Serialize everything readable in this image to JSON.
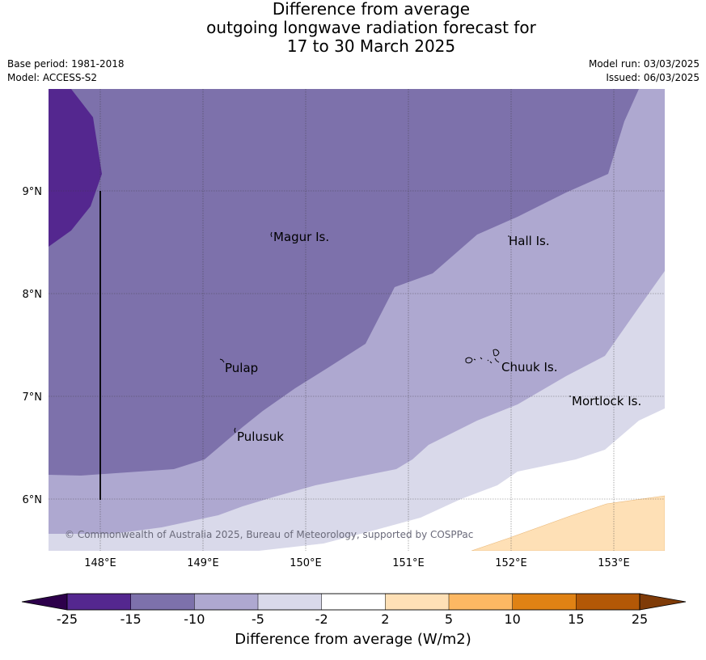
{
  "title": {
    "line1": "Difference from average",
    "line2": "outgoing longwave radiation forecast for",
    "line3": "17 to 30 March 2025"
  },
  "meta": {
    "base_period": "Base period: 1981-2018",
    "model": "Model: ACCESS-S2",
    "model_run": "Model run: 03/03/2025",
    "issued": "Issued: 06/03/2025"
  },
  "map": {
    "lon_ticks": [
      "148°E",
      "149°E",
      "150°E",
      "151°E",
      "152°E",
      "153°E"
    ],
    "lat_ticks": [
      "9°N",
      "8°N",
      "7°N",
      "6°N"
    ],
    "places": [
      "Magur Is.",
      "Hall Is.",
      "Pulap",
      "Chuuk Is.",
      "Mortlock Is.",
      "Pulusuk"
    ],
    "copyright": "© Commonwealth of Australia 2025, Bureau of Meteorology, supported by COSPPac"
  },
  "colorbar": {
    "labels": [
      "-25",
      "-15",
      "-10",
      "-5",
      "-2",
      "2",
      "5",
      "10",
      "15",
      "25"
    ],
    "colors": [
      "#54278f",
      "#7d71ab",
      "#aea8d0",
      "#d9d9ea",
      "#ffffff",
      "#fee0b6",
      "#fdb863",
      "#e08214",
      "#b35806",
      "#2d004b",
      "#7f3b08"
    ],
    "title": "Difference from average (W/m2)"
  }
}
